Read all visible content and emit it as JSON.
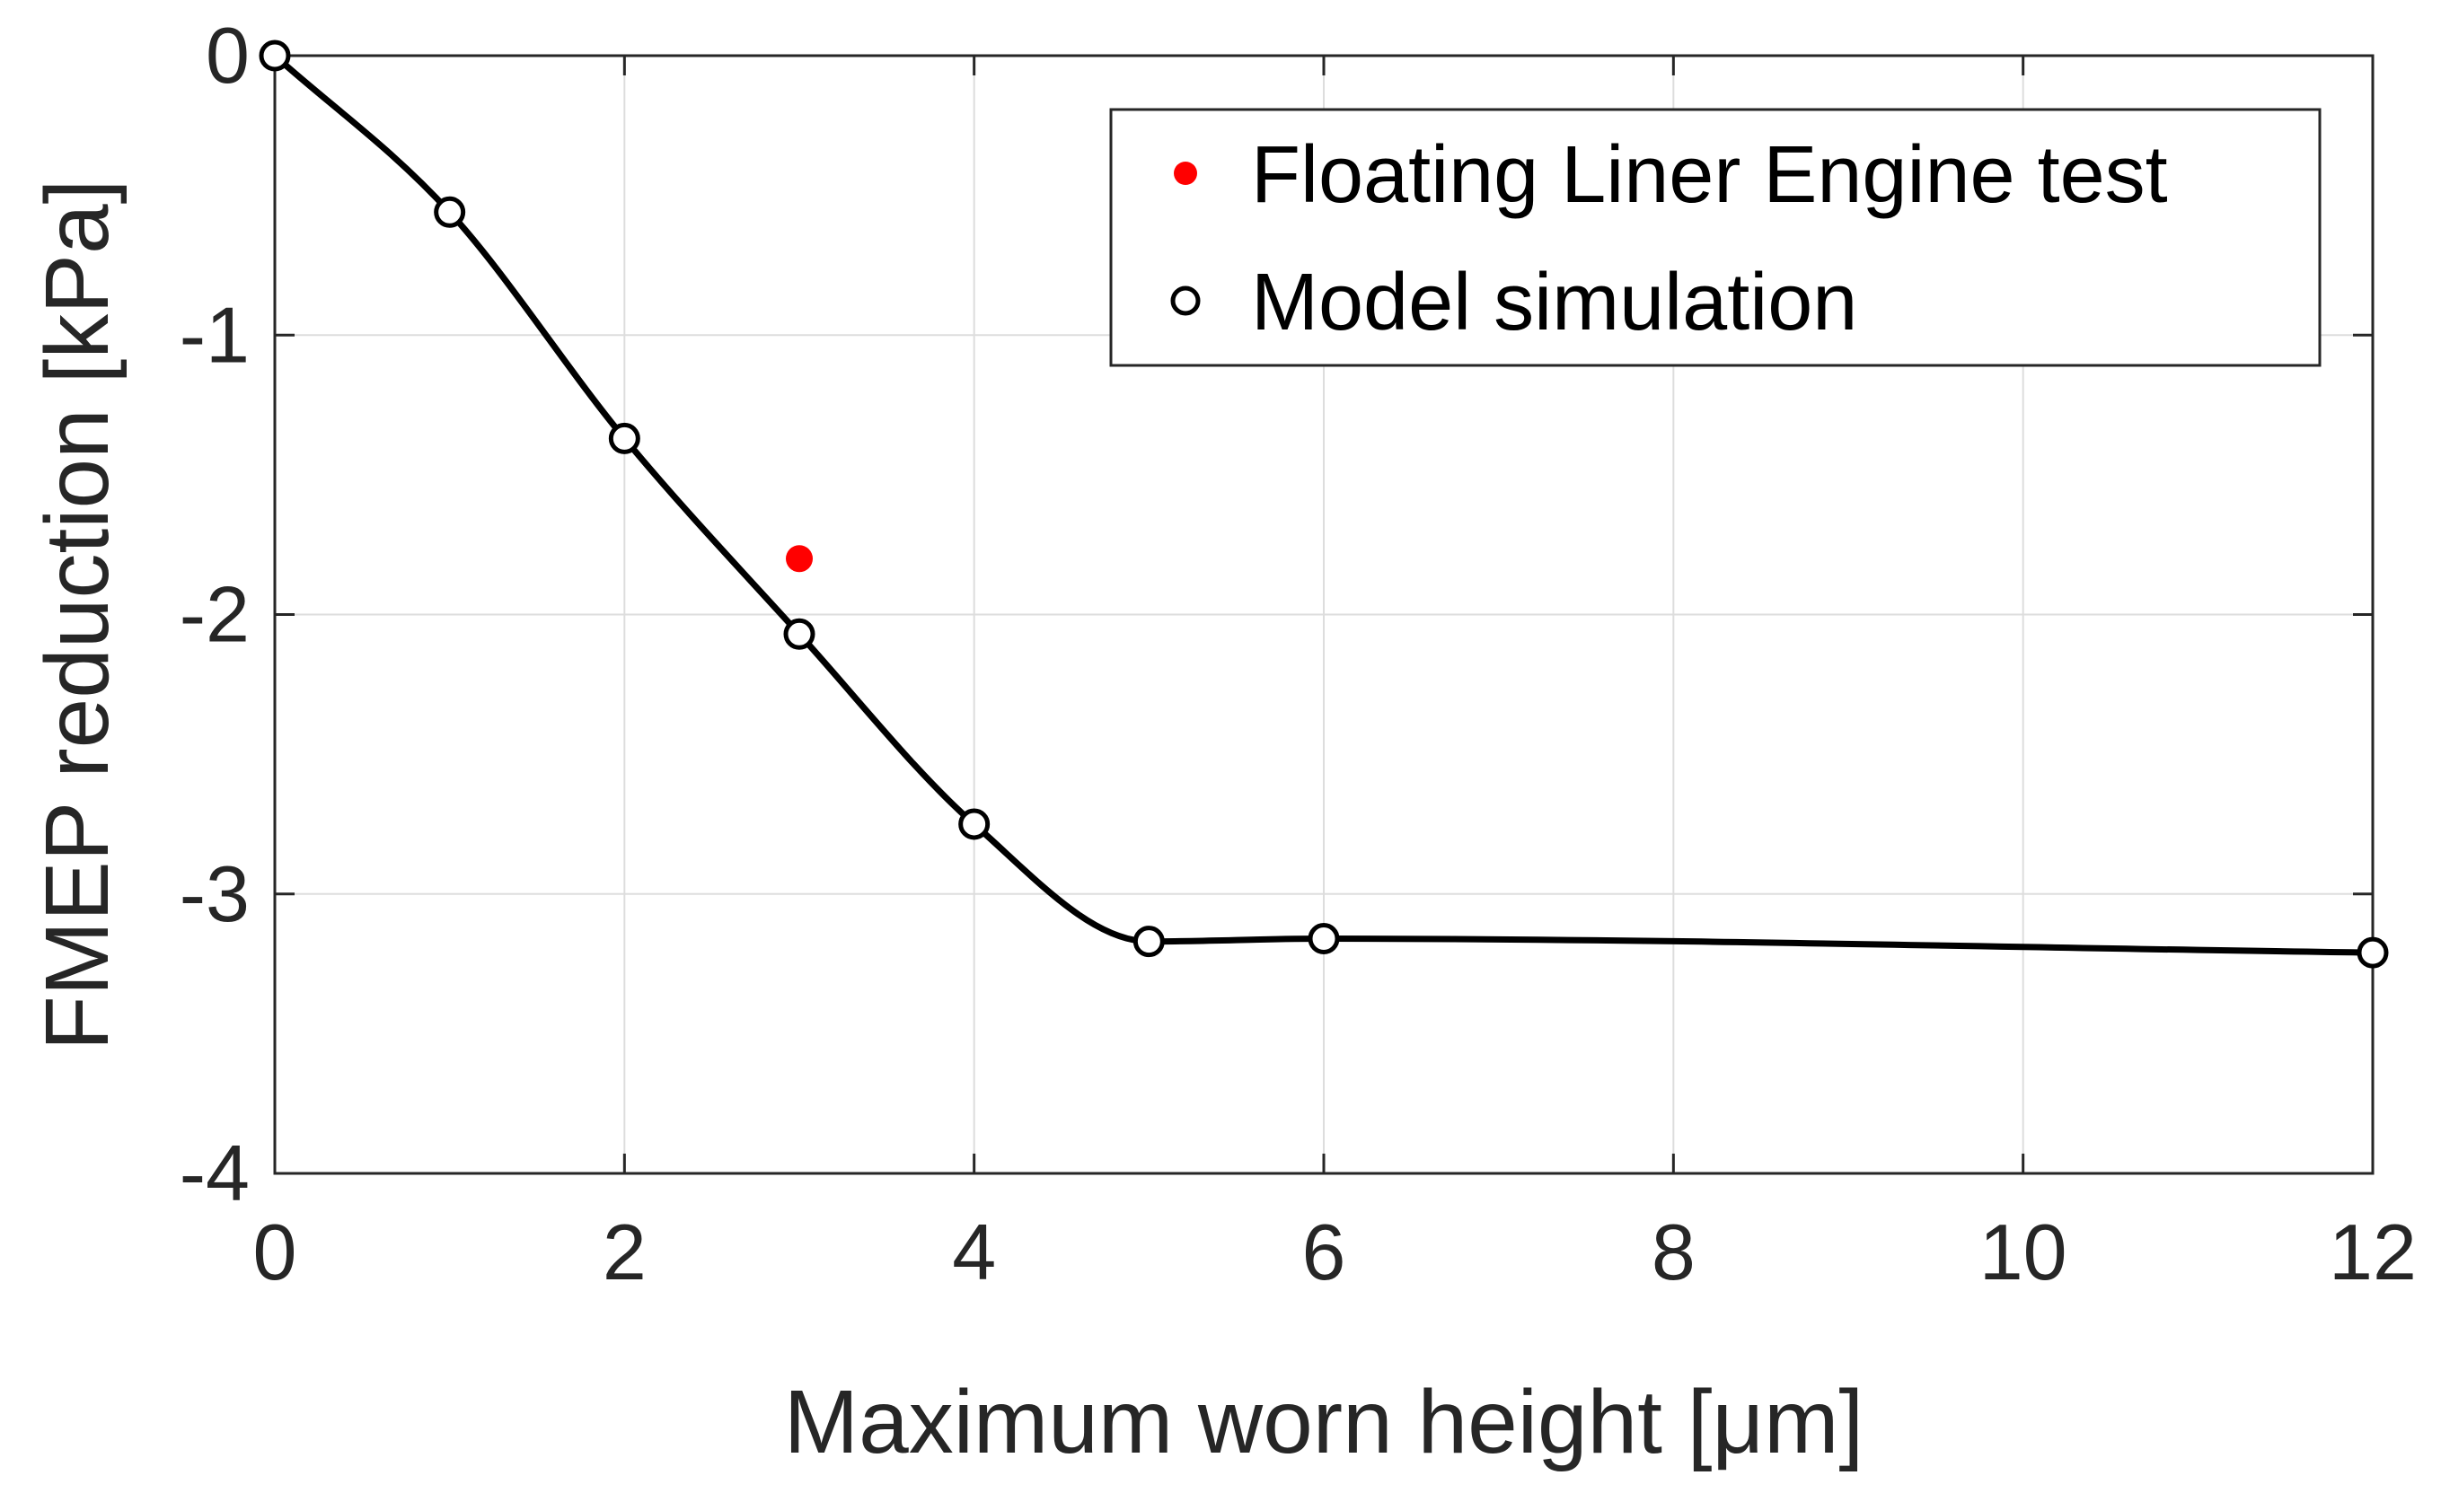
{
  "chart_data": {
    "type": "line",
    "title": "",
    "xlabel": "Maximum worn height [μm]",
    "ylabel": "FMEP reduction [kPa]",
    "xlim": [
      0,
      12
    ],
    "ylim": [
      -4,
      0
    ],
    "xticks": [
      0,
      2,
      4,
      6,
      8,
      10,
      12
    ],
    "yticks": [
      0,
      -1,
      -2,
      -3,
      -4
    ],
    "xtick_labels": [
      "0",
      "2",
      "4",
      "6",
      "8",
      "10",
      "12"
    ],
    "ytick_labels": [
      "0",
      "-1",
      "-2",
      "-3",
      "-4"
    ],
    "grid": true,
    "legend_position": "top-right",
    "series": [
      {
        "name": "Floating Liner Engine test",
        "marker": "filled-circle",
        "color": "#ff0000",
        "x": [
          3
        ],
        "y": [
          -1.8
        ]
      },
      {
        "name": "Model simulation",
        "marker": "open-circle",
        "color": "#000000",
        "smooth_line": true,
        "x": [
          0,
          1,
          2,
          3,
          4,
          5,
          6,
          12
        ],
        "y": [
          0,
          -0.56,
          -1.37,
          -2.07,
          -2.75,
          -3.17,
          -3.16,
          -3.21
        ]
      }
    ]
  }
}
